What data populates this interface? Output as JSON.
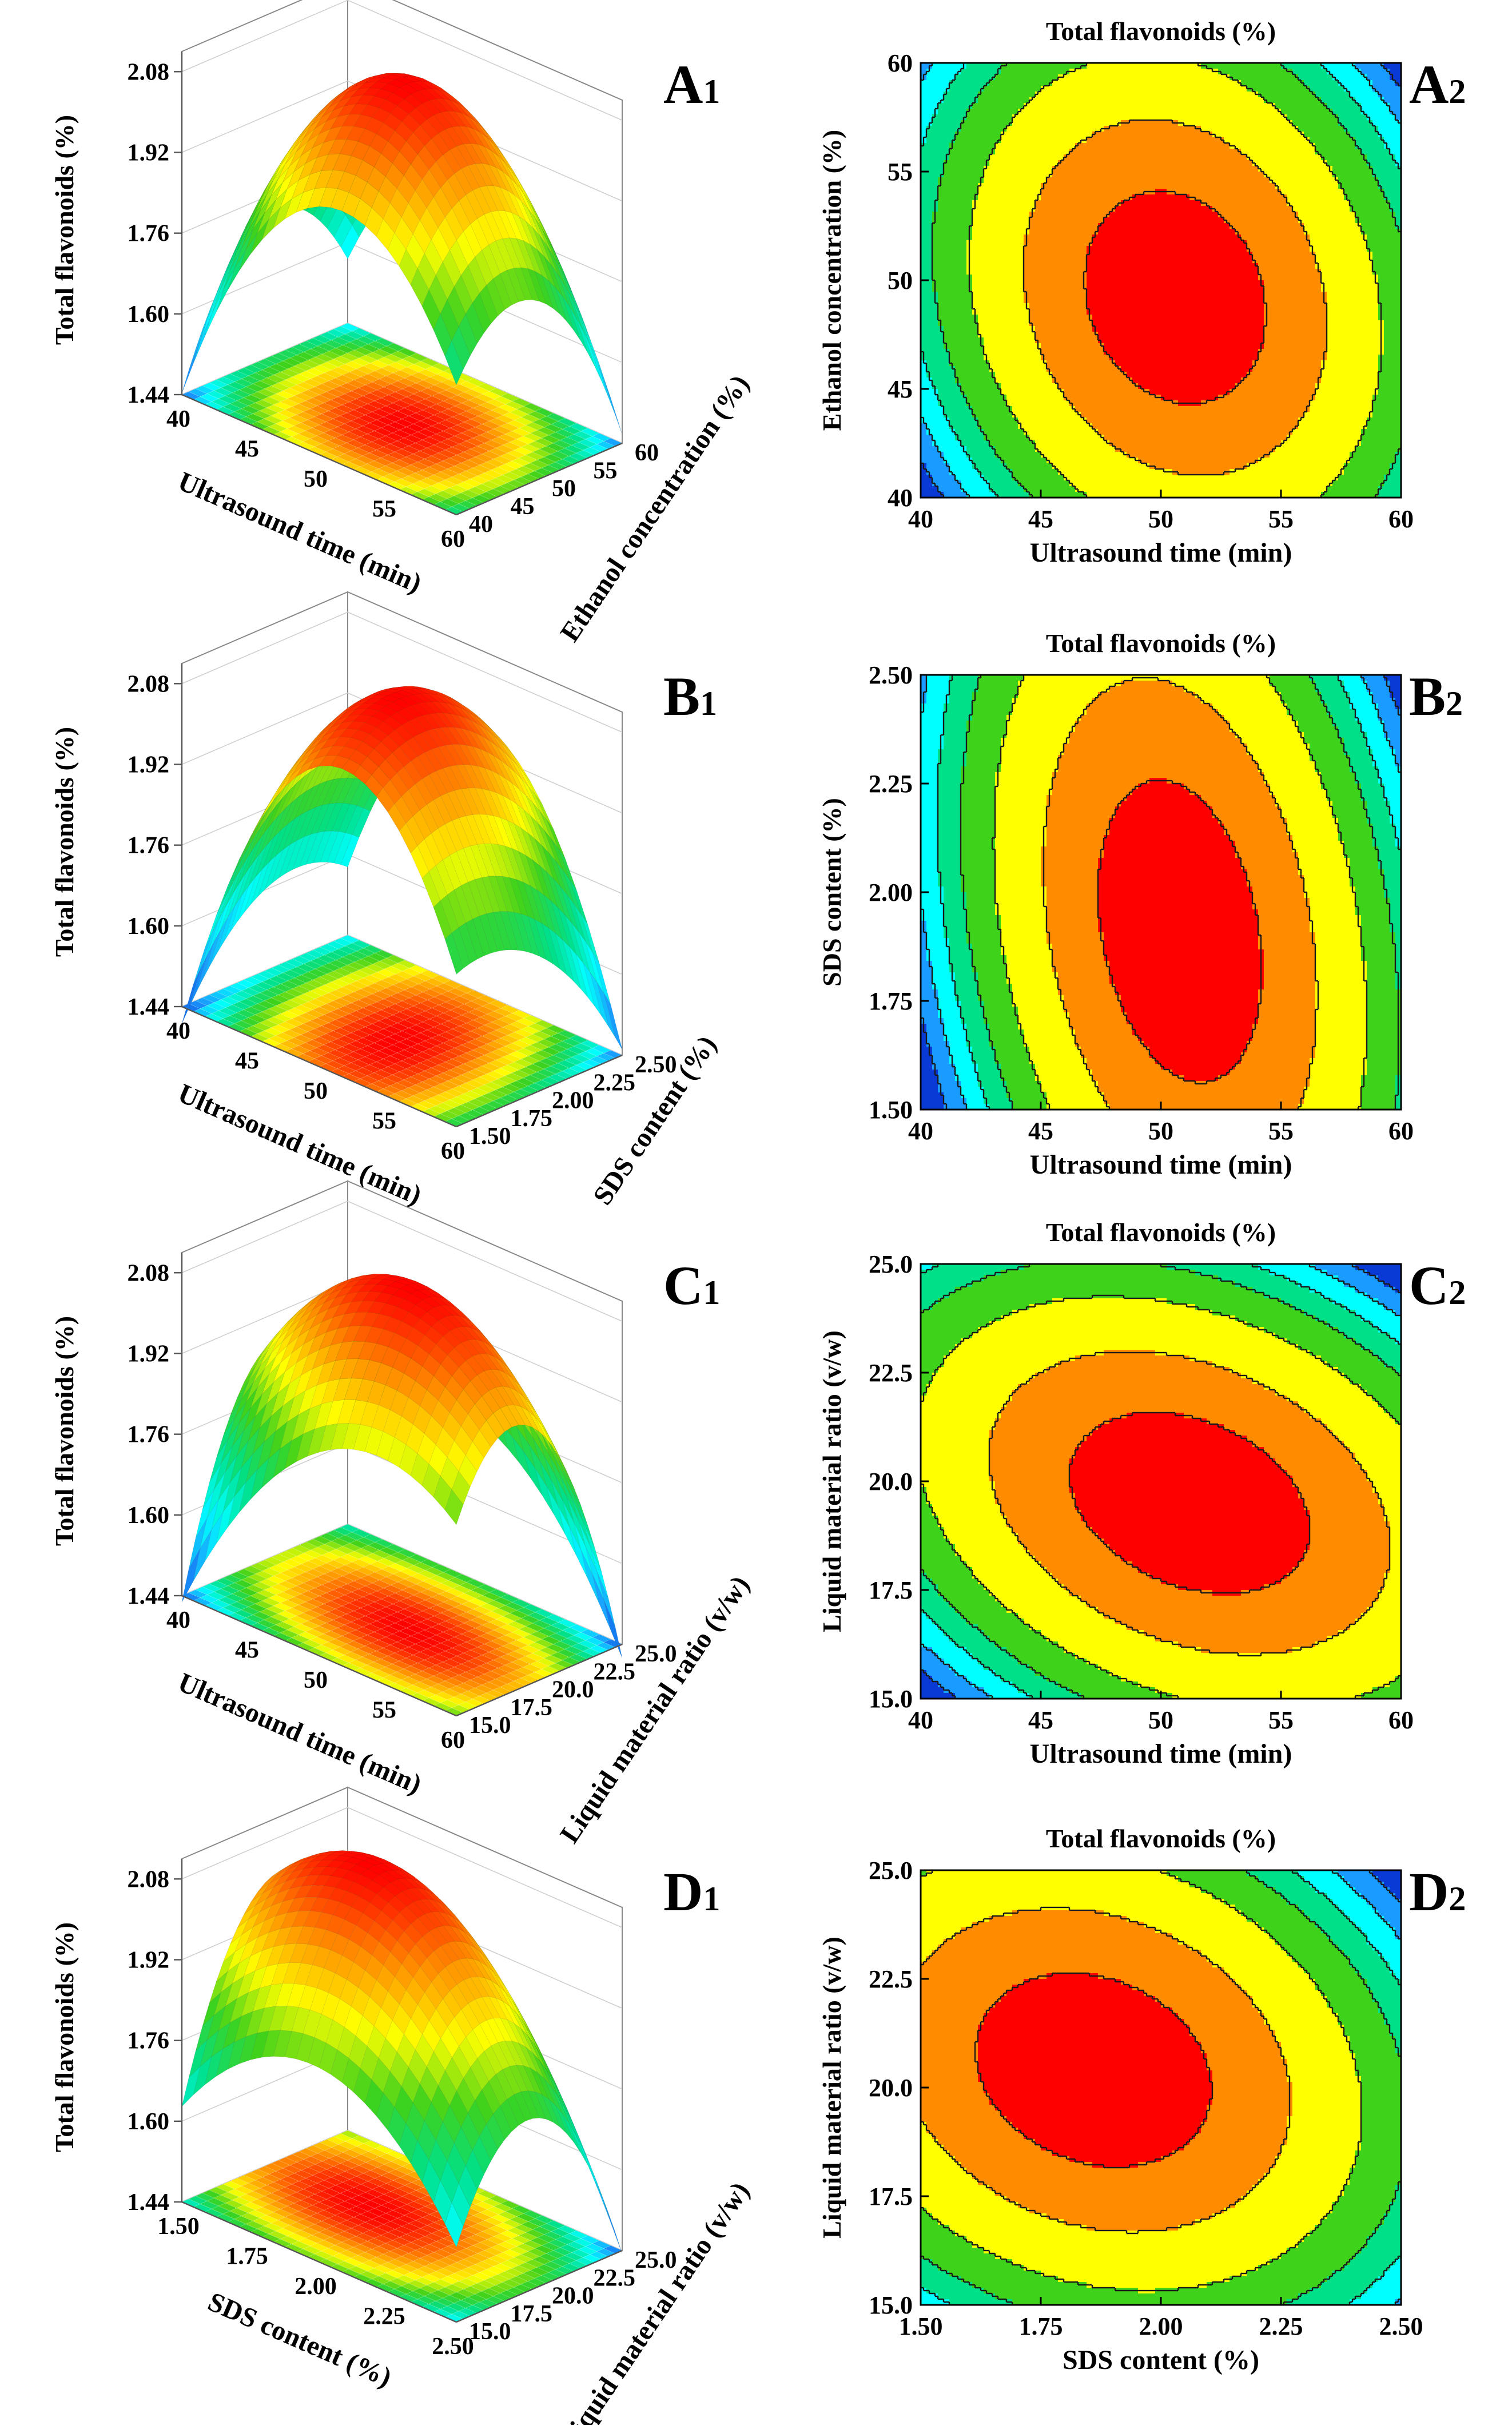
{
  "colors": {
    "levels": [
      "#0a3ad6",
      "#1a9bff",
      "#00ffff",
      "#00e089",
      "#3fd21b",
      "#ffff00",
      "#ff8c00",
      "#ff0000"
    ],
    "contour_line": "#1a1a1a",
    "frame": "#000000",
    "grid": "#cfcfcf"
  },
  "chart_data": [
    {
      "id": "A1",
      "type": "surface3d",
      "panel_label": {
        "main": "A",
        "sub": "1"
      },
      "zlabel": "Total flavonoids (%)",
      "xlabel": "Ultrasound time (min)",
      "ylabel": "Ethanol concentration (%)",
      "x_ticks": [
        "40",
        "45",
        "50",
        "55",
        "60"
      ],
      "y_ticks": [
        "40",
        "45",
        "50",
        "55",
        "60"
      ],
      "z_ticks": [
        "1.44",
        "1.60",
        "1.76",
        "1.92",
        "2.08"
      ],
      "xlim": [
        40,
        60
      ],
      "ylim": [
        40,
        60
      ],
      "zlim": [
        1.44,
        2.12
      ],
      "peak": {
        "x": 50.6,
        "y": 49.2,
        "z": 2.12
      },
      "corners": {
        "x_min_y_min": 1.44,
        "x_max_y_min": 1.72,
        "x_min_y_max": 1.55,
        "x_max_y_max": 1.46
      }
    },
    {
      "id": "A2",
      "type": "contour",
      "panel_label": {
        "main": "A",
        "sub": "2"
      },
      "title": "Total flavonoids (%)",
      "xlabel": "Ultrasound time (min)",
      "ylabel": "Ethanol concentration (%)",
      "x_ticks": [
        "40",
        "45",
        "50",
        "55",
        "60"
      ],
      "y_ticks": [
        "40",
        "45",
        "50",
        "55",
        "60"
      ],
      "xlim": [
        40,
        60
      ],
      "ylim": [
        40,
        60
      ],
      "peak": {
        "x": 50.6,
        "y": 49.2
      },
      "corners": {
        "x_min_y_min": 1.44,
        "x_max_y_min": 1.72,
        "x_min_y_max": 1.55,
        "x_max_y_max": 1.46
      }
    },
    {
      "id": "B1",
      "type": "surface3d",
      "panel_label": {
        "main": "B",
        "sub": "1"
      },
      "zlabel": "Total flavonoids (%)",
      "xlabel": "Ultrasound time (min)",
      "ylabel": "SDS content (%)",
      "x_ticks": [
        "40",
        "45",
        "50",
        "55",
        "60"
      ],
      "y_ticks": [
        "1.50",
        "1.75",
        "2.00",
        "2.25",
        "2.50"
      ],
      "z_ticks": [
        "1.44",
        "1.60",
        "1.76",
        "1.92",
        "2.08"
      ],
      "xlim": [
        40,
        60
      ],
      "ylim": [
        1.5,
        2.5
      ],
      "zlim": [
        1.44,
        2.12
      ],
      "peak": {
        "x": 50.8,
        "y": 1.91,
        "z": 2.12
      },
      "corners": {
        "x_min_y_min": 1.42,
        "x_max_y_min": 1.7,
        "x_min_y_max": 1.6,
        "x_max_y_max": 1.44
      }
    },
    {
      "id": "B2",
      "type": "contour",
      "panel_label": {
        "main": "B",
        "sub": "2"
      },
      "title": "Total flavonoids (%)",
      "xlabel": "Ultrasound time (min)",
      "ylabel": "SDS content (%)",
      "x_ticks": [
        "40",
        "45",
        "50",
        "55",
        "60"
      ],
      "y_ticks": [
        "1.50",
        "1.75",
        "2.00",
        "2.25",
        "2.50"
      ],
      "xlim": [
        40,
        60
      ],
      "ylim": [
        1.5,
        2.5
      ],
      "peak": {
        "x": 50.8,
        "y": 1.91
      },
      "corners": {
        "x_min_y_min": 1.42,
        "x_max_y_min": 1.7,
        "x_min_y_max": 1.6,
        "x_max_y_max": 1.44
      }
    },
    {
      "id": "C1",
      "type": "surface3d",
      "panel_label": {
        "main": "C",
        "sub": "1"
      },
      "zlabel": "Total flavonoids (%)",
      "xlabel": "Ultrasound time (min)",
      "ylabel": "Liquid material ratio (v/w)",
      "x_ticks": [
        "40",
        "45",
        "50",
        "55",
        "60"
      ],
      "y_ticks": [
        "15.0",
        "17.5",
        "20.0",
        "22.5",
        "25.0"
      ],
      "z_ticks": [
        "1.44",
        "1.60",
        "1.76",
        "1.92",
        "2.08"
      ],
      "xlim": [
        40,
        60
      ],
      "ylim": [
        15,
        25
      ],
      "zlim": [
        1.44,
        2.12
      ],
      "peak": {
        "x": 51.2,
        "y": 19.5,
        "z": 2.12
      },
      "corners": {
        "x_min_y_min": 1.42,
        "x_max_y_min": 1.72,
        "x_min_y_max": 1.72,
        "x_max_y_max": 1.42
      }
    },
    {
      "id": "C2",
      "type": "contour",
      "panel_label": {
        "main": "C",
        "sub": "2"
      },
      "title": "Total flavonoids (%)",
      "xlabel": "Ultrasound time (min)",
      "ylabel": "Liquid material ratio (v/w)",
      "x_ticks": [
        "40",
        "45",
        "50",
        "55",
        "60"
      ],
      "y_ticks": [
        "15.0",
        "17.5",
        "20.0",
        "22.5",
        "25.0"
      ],
      "xlim": [
        40,
        60
      ],
      "ylim": [
        15,
        25
      ],
      "peak": {
        "x": 51.2,
        "y": 19.5
      },
      "corners": {
        "x_min_y_min": 1.42,
        "x_max_y_min": 1.72,
        "x_min_y_max": 1.72,
        "x_max_y_max": 1.42
      }
    },
    {
      "id": "D1",
      "type": "surface3d",
      "panel_label": {
        "main": "D",
        "sub": "1"
      },
      "zlabel": "Total flavonoids (%)",
      "xlabel": "SDS content (%)",
      "ylabel": "Liquid material ratio (v/w)",
      "x_ticks": [
        "1.50",
        "1.75",
        "2.00",
        "2.25",
        "2.50"
      ],
      "y_ticks": [
        "15.0",
        "17.5",
        "20.0",
        "22.5",
        "25.0"
      ],
      "z_ticks": [
        "1.44",
        "1.60",
        "1.76",
        "1.92",
        "2.08"
      ],
      "xlim": [
        1.5,
        2.5
      ],
      "ylim": [
        15,
        25
      ],
      "zlim": [
        1.44,
        2.12
      ],
      "peak": {
        "x": 1.86,
        "y": 20.4,
        "z": 2.12
      },
      "corners": {
        "x_min_y_min": 1.68,
        "x_max_y_min": 1.64,
        "x_min_y_max": 1.74,
        "x_max_y_max": 1.4
      }
    },
    {
      "id": "D2",
      "type": "contour",
      "panel_label": {
        "main": "D",
        "sub": "2"
      },
      "title": "Total flavonoids (%)",
      "xlabel": "SDS content (%)",
      "ylabel": "Liquid material ratio (v/w)",
      "x_ticks": [
        "1.50",
        "1.75",
        "2.00",
        "2.25",
        "2.50"
      ],
      "y_ticks": [
        "15.0",
        "17.5",
        "20.0",
        "22.5",
        "25.0"
      ],
      "xlim": [
        1.5,
        2.5
      ],
      "ylim": [
        15,
        25
      ],
      "peak": {
        "x": 1.86,
        "y": 20.4
      },
      "corners": {
        "x_min_y_min": 1.68,
        "x_max_y_min": 1.64,
        "x_min_y_max": 1.74,
        "x_max_y_max": 1.4
      }
    }
  ]
}
